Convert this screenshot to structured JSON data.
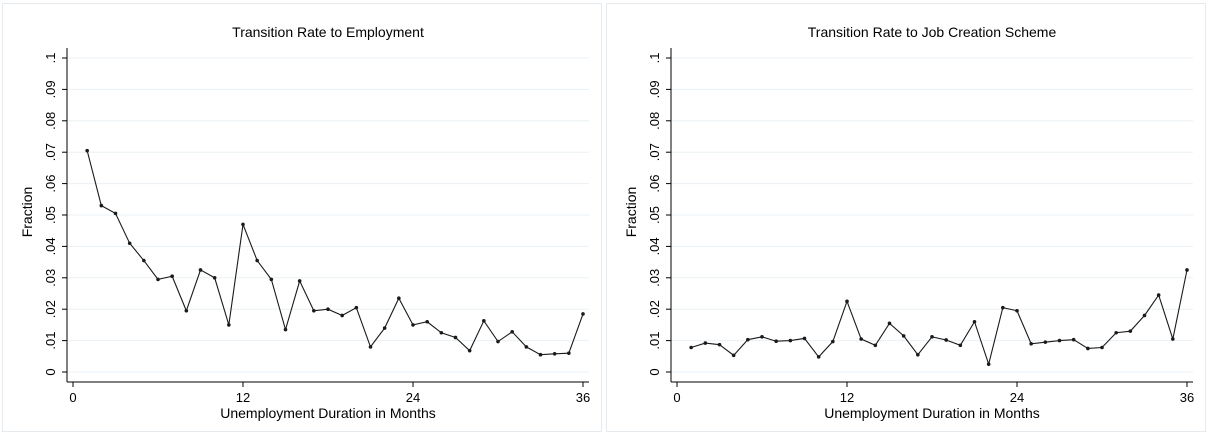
{
  "chart_data": [
    {
      "type": "line",
      "title": "Transition Rate to Employment",
      "xlabel": "Unemployment Duration in Months",
      "ylabel": "Fraction",
      "xlim": [
        0,
        36
      ],
      "ylim": [
        0,
        0.1
      ],
      "xticks": [
        0,
        12,
        24,
        36
      ],
      "xtick_labels": [
        "0",
        "12",
        "24",
        "36"
      ],
      "yticks": [
        0,
        0.01,
        0.02,
        0.03,
        0.04,
        0.05,
        0.06,
        0.07,
        0.08,
        0.09,
        0.1
      ],
      "ytick_labels": [
        "0",
        ".01",
        ".02",
        ".03",
        ".04",
        ".05",
        ".06",
        ".07",
        ".08",
        ".09",
        ".1"
      ],
      "grid": true,
      "x": [
        1,
        2,
        3,
        4,
        5,
        6,
        7,
        8,
        9,
        10,
        11,
        12,
        13,
        14,
        15,
        16,
        17,
        18,
        19,
        20,
        21,
        22,
        23,
        24,
        25,
        26,
        27,
        28,
        29,
        30,
        31,
        32,
        33,
        34,
        35,
        36
      ],
      "values": [
        0.0705,
        0.053,
        0.0505,
        0.041,
        0.0355,
        0.0295,
        0.0305,
        0.0195,
        0.0325,
        0.03,
        0.015,
        0.047,
        0.0355,
        0.0295,
        0.0135,
        0.029,
        0.0195,
        0.02,
        0.018,
        0.0205,
        0.008,
        0.014,
        0.0235,
        0.015,
        0.016,
        0.0125,
        0.011,
        0.0068,
        0.0163,
        0.0097,
        0.0128,
        0.008,
        0.0055,
        0.0058,
        0.006,
        0.0185
      ]
    },
    {
      "type": "line",
      "title": "Transition Rate to Job Creation Scheme",
      "xlabel": "Unemployment Duration in Months",
      "ylabel": "Fraction",
      "xlim": [
        0,
        36
      ],
      "ylim": [
        0,
        0.1
      ],
      "xticks": [
        0,
        12,
        24,
        36
      ],
      "xtick_labels": [
        "0",
        "12",
        "24",
        "36"
      ],
      "yticks": [
        0,
        0.01,
        0.02,
        0.03,
        0.04,
        0.05,
        0.06,
        0.07,
        0.08,
        0.09,
        0.1
      ],
      "ytick_labels": [
        "0",
        ".01",
        ".02",
        ".03",
        ".04",
        ".05",
        ".06",
        ".07",
        ".08",
        ".09",
        ".1"
      ],
      "grid": true,
      "x": [
        1,
        2,
        3,
        4,
        5,
        6,
        7,
        8,
        9,
        10,
        11,
        12,
        13,
        14,
        15,
        16,
        17,
        18,
        19,
        20,
        21,
        22,
        23,
        24,
        25,
        26,
        27,
        28,
        29,
        30,
        31,
        32,
        33,
        34,
        35,
        36
      ],
      "values": [
        0.0078,
        0.0092,
        0.0087,
        0.0053,
        0.0103,
        0.0112,
        0.0098,
        0.01,
        0.0107,
        0.0048,
        0.0097,
        0.0225,
        0.0105,
        0.0085,
        0.0155,
        0.0115,
        0.0055,
        0.0112,
        0.0102,
        0.0085,
        0.016,
        0.0025,
        0.0205,
        0.0195,
        0.009,
        0.0095,
        0.01,
        0.0103,
        0.0075,
        0.0078,
        0.0125,
        0.013,
        0.018,
        0.0245,
        0.0105,
        0.0325
      ]
    }
  ],
  "colors": {
    "line": "#1a1a1a",
    "grid": "#eaf0f4",
    "panel_border": "#e6ebf0"
  }
}
